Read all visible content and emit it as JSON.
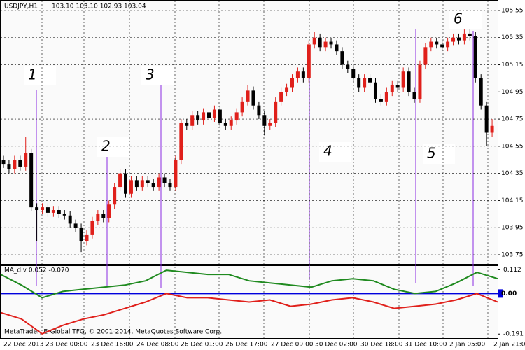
{
  "chart_data": {
    "type": "candlestick",
    "title": "USDJPY,H1",
    "subtitle": "103.10 103.10 102.93 103.04",
    "ylim": [
      103.683,
      105.622
    ],
    "yticks": [
      105.55,
      105.35,
      105.15,
      104.95,
      104.75,
      104.55,
      104.35,
      104.15,
      103.95,
      103.75
    ],
    "grid": true,
    "up_color": "#e0201b",
    "down_color": "#000000",
    "x_labels": [
      "22 Dec 2013",
      "23 Dec 00:00",
      "23 Dec 16:00",
      "24 Dec 08:00",
      "26 Dec 01:00",
      "26 Dec 17:00",
      "27 Dec 09:00",
      "30 Dec 02:00",
      "30 Dec 18:00",
      "31 Dec 10:00",
      "2 Jan 05:00",
      "2 Jan 21:00"
    ],
    "candles": [
      [
        104.45,
        104.48,
        104.39,
        104.42
      ],
      [
        104.42,
        104.45,
        104.35,
        104.38
      ],
      [
        104.38,
        104.48,
        104.35,
        104.45
      ],
      [
        104.45,
        104.48,
        104.37,
        104.4
      ],
      [
        104.4,
        104.62,
        104.37,
        104.5
      ],
      [
        104.5,
        104.53,
        104.07,
        104.1
      ],
      [
        104.1,
        104.13,
        103.85,
        104.08
      ],
      [
        104.08,
        104.13,
        104.05,
        104.1
      ],
      [
        104.1,
        104.13,
        104.03,
        104.06
      ],
      [
        104.06,
        104.11,
        104.03,
        104.08
      ],
      [
        104.08,
        104.11,
        104.02,
        104.05
      ],
      [
        104.05,
        104.08,
        104.01,
        104.04
      ],
      [
        104.04,
        104.07,
        103.95,
        103.98
      ],
      [
        103.98,
        104.01,
        103.92,
        103.95
      ],
      [
        103.95,
        103.98,
        103.77,
        103.85
      ],
      [
        103.85,
        103.93,
        103.82,
        103.9
      ],
      [
        103.9,
        104.03,
        103.87,
        104.0
      ],
      [
        104.0,
        104.08,
        103.97,
        104.05
      ],
      [
        104.05,
        104.08,
        103.99,
        104.02
      ],
      [
        104.02,
        104.15,
        103.99,
        104.12
      ],
      [
        104.12,
        104.28,
        104.09,
        104.25
      ],
      [
        104.25,
        104.38,
        104.22,
        104.35
      ],
      [
        104.35,
        104.38,
        104.17,
        104.2
      ],
      [
        104.2,
        104.33,
        104.17,
        104.3
      ],
      [
        104.3,
        104.33,
        104.22,
        104.25
      ],
      [
        104.25,
        104.33,
        104.22,
        104.3
      ],
      [
        104.3,
        104.33,
        104.25,
        104.28
      ],
      [
        104.28,
        104.31,
        104.22,
        104.25
      ],
      [
        104.25,
        104.35,
        104.22,
        104.32
      ],
      [
        104.32,
        104.35,
        104.25,
        104.28
      ],
      [
        104.28,
        104.31,
        104.22,
        104.25
      ],
      [
        104.25,
        104.48,
        104.22,
        104.45
      ],
      [
        104.45,
        104.75,
        104.42,
        104.72
      ],
      [
        104.72,
        104.75,
        104.67,
        104.7
      ],
      [
        104.7,
        104.81,
        104.67,
        104.78
      ],
      [
        104.78,
        104.81,
        104.71,
        104.74
      ],
      [
        104.74,
        104.83,
        104.71,
        104.8
      ],
      [
        104.8,
        104.83,
        104.73,
        104.76
      ],
      [
        104.76,
        104.85,
        104.73,
        104.82
      ],
      [
        104.82,
        104.85,
        104.69,
        104.72
      ],
      [
        104.72,
        104.75,
        104.67,
        104.7
      ],
      [
        104.7,
        104.77,
        104.67,
        104.74
      ],
      [
        104.74,
        104.83,
        104.71,
        104.8
      ],
      [
        104.8,
        104.91,
        104.77,
        104.88
      ],
      [
        104.88,
        105.0,
        104.85,
        104.96
      ],
      [
        104.96,
        104.99,
        104.82,
        104.85
      ],
      [
        104.85,
        104.88,
        104.75,
        104.78
      ],
      [
        104.78,
        104.81,
        104.63,
        104.7
      ],
      [
        104.7,
        104.75,
        104.67,
        104.72
      ],
      [
        104.72,
        104.91,
        104.69,
        104.88
      ],
      [
        104.88,
        104.98,
        104.85,
        104.95
      ],
      [
        104.95,
        105.01,
        104.92,
        104.98
      ],
      [
        104.98,
        105.08,
        104.95,
        105.05
      ],
      [
        105.05,
        105.13,
        105.02,
        105.1
      ],
      [
        105.1,
        105.13,
        105.02,
        105.05
      ],
      [
        105.05,
        105.33,
        105.02,
        105.3
      ],
      [
        105.3,
        105.39,
        105.27,
        105.35
      ],
      [
        105.35,
        105.38,
        105.25,
        105.28
      ],
      [
        105.28,
        105.35,
        105.25,
        105.32
      ],
      [
        105.32,
        105.35,
        105.27,
        105.3
      ],
      [
        105.3,
        105.33,
        105.22,
        105.25
      ],
      [
        105.25,
        105.28,
        105.12,
        105.15
      ],
      [
        105.15,
        105.18,
        105.09,
        105.12
      ],
      [
        105.12,
        105.15,
        105.02,
        105.05
      ],
      [
        105.05,
        105.08,
        104.95,
        104.98
      ],
      [
        104.98,
        105.08,
        104.95,
        105.05
      ],
      [
        105.05,
        105.08,
        104.99,
        105.02
      ],
      [
        105.02,
        105.05,
        104.87,
        104.9
      ],
      [
        104.9,
        104.93,
        104.85,
        104.88
      ],
      [
        104.88,
        104.98,
        104.85,
        104.95
      ],
      [
        104.95,
        105.03,
        104.92,
        105.0
      ],
      [
        105.0,
        105.03,
        104.95,
        104.98
      ],
      [
        104.98,
        105.13,
        104.95,
        105.1
      ],
      [
        105.1,
        105.13,
        104.92,
        104.95
      ],
      [
        104.95,
        104.98,
        104.87,
        104.9
      ],
      [
        104.9,
        105.18,
        104.87,
        105.15
      ],
      [
        105.15,
        105.31,
        105.12,
        105.28
      ],
      [
        105.28,
        105.35,
        105.25,
        105.32
      ],
      [
        105.32,
        105.35,
        105.27,
        105.3
      ],
      [
        105.3,
        105.33,
        105.25,
        105.28
      ],
      [
        105.28,
        105.35,
        105.25,
        105.32
      ],
      [
        105.32,
        105.38,
        105.29,
        105.35
      ],
      [
        105.35,
        105.38,
        105.3,
        105.33
      ],
      [
        105.33,
        105.41,
        105.3,
        105.38
      ],
      [
        105.38,
        105.41,
        105.33,
        105.36
      ],
      [
        105.36,
        105.39,
        105.02,
        105.05
      ],
      [
        105.05,
        105.08,
        104.82,
        104.85
      ],
      [
        104.85,
        104.88,
        104.55,
        104.65
      ],
      [
        104.65,
        104.75,
        104.62,
        104.7
      ]
    ],
    "annotations": [
      "1",
      "2",
      "3",
      "4",
      "5",
      "6"
    ],
    "indicator": {
      "type": "line",
      "title": "MA_div 0.052 -0.070",
      "ylim": [
        -0.21,
        0.13
      ],
      "yticks": [
        0.112,
        {
          "value": 0,
          "label": "0.00"
        },
        -0.191
      ],
      "series": [
        {
          "color": "#1f8a1f",
          "values": [
            0.09,
            0.04,
            -0.02,
            0.01,
            0.02,
            0.03,
            0.04,
            0.06,
            0.11,
            0.1,
            0.09,
            0.09,
            0.06,
            0.05,
            0.04,
            0.03,
            0.06,
            0.07,
            0.06,
            0.02,
            0.0,
            0.01,
            0.05,
            0.1,
            0.07
          ]
        },
        {
          "color": "#e0201b",
          "values": [
            -0.09,
            -0.12,
            -0.19,
            -0.15,
            -0.12,
            -0.1,
            -0.07,
            -0.04,
            0.0,
            -0.02,
            -0.02,
            -0.03,
            -0.04,
            -0.03,
            -0.06,
            -0.05,
            -0.03,
            -0.02,
            -0.04,
            -0.07,
            -0.06,
            -0.05,
            -0.03,
            0.0,
            -0.04
          ]
        }
      ],
      "zero_color": "#0000dd"
    },
    "footer": "MetaTrader, E-Global TFG, © 2001-2014, MetaQuotes Software Corp."
  }
}
